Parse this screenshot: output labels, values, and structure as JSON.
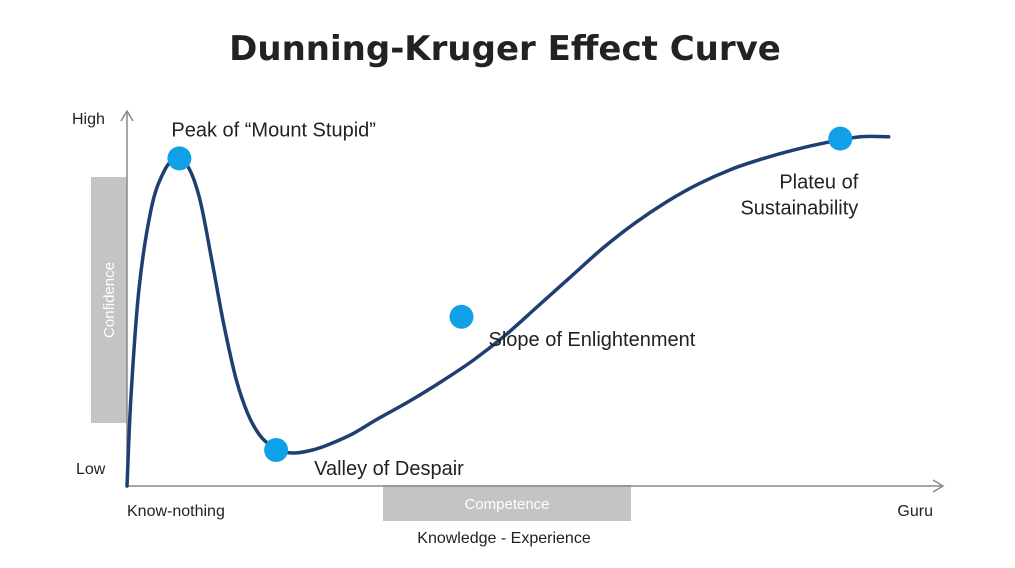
{
  "chart_data": {
    "type": "line",
    "title": "Dunning-Kruger Effect Curve",
    "xlabel": "Knowledge - Experience",
    "ylabel": "",
    "x_axis_band_label": "Competence",
    "y_axis_band_label": "Confidence",
    "x_tick_labels": {
      "start": "Know-nothing",
      "end": "Guru"
    },
    "y_tick_labels": {
      "top": "High",
      "bottom": "Low"
    },
    "xlim": [
      0,
      100
    ],
    "ylim": [
      0,
      100
    ],
    "grid": false,
    "series": [
      {
        "x": [
          0,
          0.5,
          1.5,
          3,
          4.5,
          6,
          7.5,
          9,
          10.5,
          12,
          13.5,
          15,
          16.5,
          18,
          19.5,
          21,
          23,
          25,
          28,
          31,
          35,
          39,
          43,
          47,
          51,
          55,
          59,
          63,
          67,
          71,
          75,
          79,
          83,
          87,
          91,
          94.5
        ],
        "y": [
          0,
          25,
          55,
          77,
          87,
          91,
          89,
          80,
          63,
          45,
          30,
          20,
          14,
          11,
          9.5,
          9.2,
          10,
          11.5,
          14.5,
          18.5,
          23.5,
          29,
          35,
          42,
          50,
          58,
          66,
          73,
          79,
          84,
          88,
          91,
          93.5,
          95.5,
          97,
          97
        ]
      }
    ],
    "annotations": [
      {
        "label": "Peak of “Mount Stupid”",
        "x": 6.5,
        "y": 91
      },
      {
        "label": "Valley of Despair",
        "x": 18.5,
        "y": 10
      },
      {
        "label": "Slope of Enlightenment",
        "x": 41.5,
        "y": 47
      },
      {
        "label_lines": [
          "Plateu of",
          "Sustainability"
        ],
        "x": 88.5,
        "y": 96.5
      }
    ],
    "colors": {
      "curve": "#1f3f73",
      "points": "#0fa0e8",
      "axis": "#8a8a8a",
      "band": "#c4c4c4",
      "band_text": "#ffffff",
      "text": "#222222"
    }
  }
}
